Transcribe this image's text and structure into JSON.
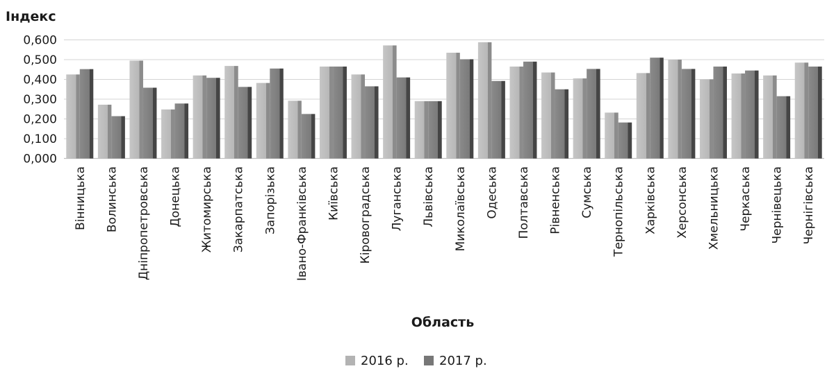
{
  "chart_data": {
    "type": "bar",
    "ylabel": "Індекс",
    "xlabel": "Область",
    "ylim": [
      0,
      0.6
    ],
    "yticks": [
      "0,000",
      "0,100",
      "0,200",
      "0,300",
      "0,400",
      "0,500",
      "0,600"
    ],
    "grid": true,
    "legend_position": "bottom",
    "categories": [
      "Вінницька",
      "Волинська",
      "Дніпропетровська",
      "Донецька",
      "Житомирська",
      "Закарпатська",
      "Запорізька",
      "Івано-Франківська",
      "Київська",
      "Кіровоградська",
      "Луганська",
      "Львівська",
      "Миколаївська",
      "Одеська",
      "Полтавська",
      "Рівненська",
      "Сумська",
      "Тернопільська",
      "Харківська",
      "Херсонська",
      "Хмельницька",
      "Черкаська",
      "Чернівецька",
      "Чернігівська"
    ],
    "series": [
      {
        "name": "2016 р.",
        "color": "#b3b3b3",
        "values": [
          0.425,
          0.272,
          0.495,
          0.248,
          0.42,
          0.468,
          0.382,
          0.292,
          0.465,
          0.425,
          0.572,
          0.29,
          0.535,
          0.588,
          0.465,
          0.435,
          0.405,
          0.232,
          0.432,
          0.5,
          0.4,
          0.43,
          0.42,
          0.485
        ]
      },
      {
        "name": "2017 р.",
        "color": "#777777",
        "values": [
          0.452,
          0.214,
          0.358,
          0.278,
          0.408,
          0.362,
          0.455,
          0.225,
          0.465,
          0.365,
          0.41,
          0.29,
          0.502,
          0.392,
          0.49,
          0.35,
          0.453,
          0.182,
          0.51,
          0.453,
          0.465,
          0.445,
          0.315,
          0.465
        ]
      }
    ]
  }
}
